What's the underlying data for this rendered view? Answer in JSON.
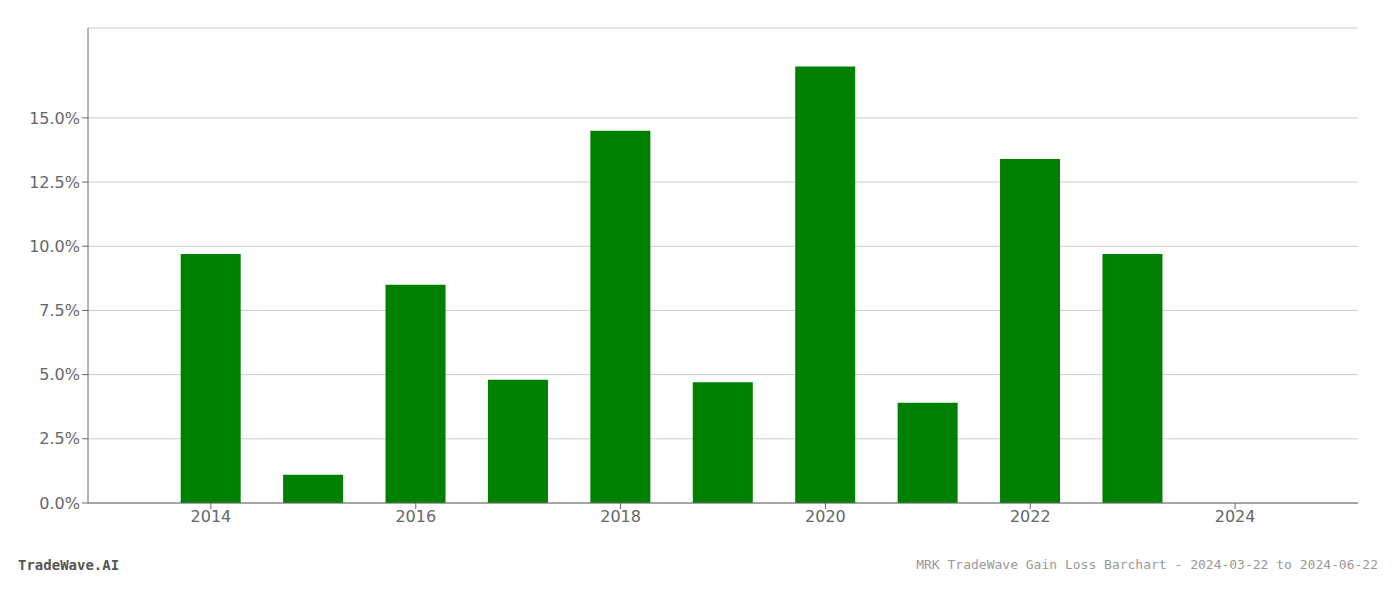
{
  "chart_data": {
    "type": "bar",
    "x": [
      2014,
      2015,
      2016,
      2017,
      2018,
      2019,
      2020,
      2021,
      2022,
      2023,
      2024
    ],
    "values": [
      0.097,
      0.011,
      0.085,
      0.048,
      0.145,
      0.047,
      0.17,
      0.039,
      0.134,
      0.097,
      0.0
    ],
    "color": "#008000",
    "xlim": [
      2012.8,
      2025.2
    ],
    "xticks": [
      2014,
      2016,
      2018,
      2020,
      2022,
      2024
    ],
    "ylim": [
      0,
      0.185
    ],
    "yticks": [
      {
        "value": 0.0,
        "label": "0.0%"
      },
      {
        "value": 0.025,
        "label": "2.5%"
      },
      {
        "value": 0.05,
        "label": "5.0%"
      },
      {
        "value": 0.075,
        "label": "7.5%"
      },
      {
        "value": 0.1,
        "label": "10.0%"
      },
      {
        "value": 0.125,
        "label": "12.5%"
      },
      {
        "value": 0.15,
        "label": "15.0%"
      }
    ],
    "grid": true,
    "annotations": [
      "TradeWave.AI",
      "MRK TradeWave Gain Loss Barchart - 2024-03-22 to 2024-06-22"
    ]
  }
}
